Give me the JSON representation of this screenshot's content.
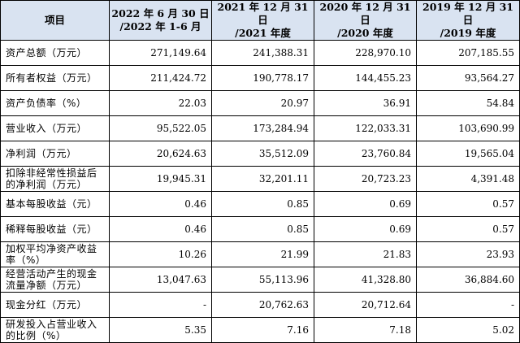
{
  "table": {
    "headers": [
      "项目",
      "2022 年 6 月 30 日 /2022 年 1-6 月",
      "2021 年 12 月 31 日 /2021 年度",
      "2020 年 12 月 31 日 /2020 年度",
      "2019 年 12 月 31 日 /2019 年度"
    ],
    "header_lines": [
      [
        "项目"
      ],
      [
        "2022 年 6 月 30 日",
        "/2022 年 1-6 月"
      ],
      [
        "2021 年 12 月 31 日",
        "/2021 年度"
      ],
      [
        "2020 年 12 月 31 日",
        "/2020 年度"
      ],
      [
        "2019 年 12 月 31 日",
        "/2019 年度"
      ]
    ],
    "rows": [
      {
        "label": "资产总额（万元）",
        "values": [
          "271,149.64",
          "241,388.31",
          "228,970.10",
          "207,185.55"
        ]
      },
      {
        "label": "所有者权益（万元）",
        "values": [
          "211,424.72",
          "190,778.17",
          "144,455.23",
          "93,564.27"
        ]
      },
      {
        "label": "资产负债率（%）",
        "values": [
          "22.03",
          "20.97",
          "36.91",
          "54.84"
        ]
      },
      {
        "label": "营业收入（万元）",
        "values": [
          "95,522.05",
          "173,284.94",
          "122,033.31",
          "103,690.99"
        ]
      },
      {
        "label": "净利润（万元）",
        "values": [
          "20,624.63",
          "35,512.09",
          "23,760.84",
          "19,565.04"
        ]
      },
      {
        "label": "扣除非经常性损益后的净利润（万元）",
        "values": [
          "19,945.31",
          "32,201.11",
          "20,723.23",
          "4,391.48"
        ]
      },
      {
        "label": "基本每股收益（元）",
        "values": [
          "0.46",
          "0.85",
          "0.69",
          "0.57"
        ]
      },
      {
        "label": "稀释每股收益（元）",
        "values": [
          "0.46",
          "0.85",
          "0.69",
          "0.57"
        ]
      },
      {
        "label": "加权平均净资产收益率（%）",
        "values": [
          "10.26",
          "21.99",
          "21.83",
          "23.93"
        ]
      },
      {
        "label": "经营活动产生的现金流量净额（万元）",
        "values": [
          "13,047.63",
          "55,113.96",
          "41,328.80",
          "36,884.60"
        ]
      },
      {
        "label": "现金分红（万元）",
        "values": [
          "-",
          "20,762.63",
          "20,712.64",
          "-"
        ]
      },
      {
        "label": "研发投入占营业收入的比例（%）",
        "values": [
          "5.35",
          "7.16",
          "7.18",
          "5.02"
        ]
      }
    ]
  },
  "colors": {
    "header_background": "#d9e3f1",
    "border": "#000000",
    "text": "#000000"
  }
}
